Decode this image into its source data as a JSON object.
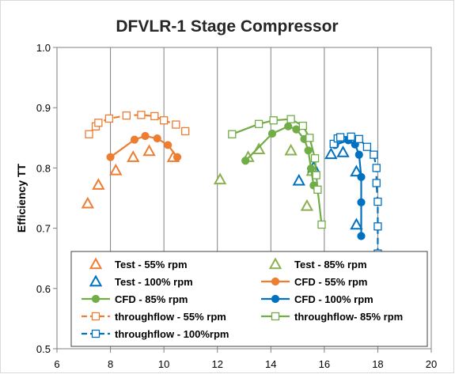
{
  "chart_data": {
    "type": "scatter",
    "title": "DFVLR-1 Stage Compressor",
    "xlabel": "",
    "ylabel": "Efficiency TT",
    "xlim": [
      6,
      20
    ],
    "ylim": [
      0.5,
      1.0
    ],
    "xticks": [
      "6",
      "8",
      "10",
      "12",
      "14",
      "16",
      "18",
      "20"
    ],
    "yticks": [
      "0.5",
      "0.6",
      "0.7",
      "0.8",
      "0.9",
      "1.0"
    ],
    "grid": "vertical major gridlines",
    "legend_position": "lower center, inside plot, two columns",
    "series": [
      {
        "name": "Test - 55% rpm",
        "color": "#ED7D31",
        "marker": "triangle-open",
        "line": "none",
        "points": [
          [
            7.15,
            0.741
          ],
          [
            7.55,
            0.772
          ],
          [
            8.2,
            0.796
          ],
          [
            8.85,
            0.818
          ],
          [
            9.45,
            0.828
          ],
          [
            10.35,
            0.818
          ]
        ]
      },
      {
        "name": "Test - 85% rpm",
        "color": "#8CAF50",
        "marker": "triangle-open",
        "line": "none",
        "points": [
          [
            12.1,
            0.781
          ],
          [
            13.15,
            0.818
          ],
          [
            13.55,
            0.831
          ],
          [
            14.75,
            0.829
          ],
          [
            15.35,
            0.737
          ],
          [
            15.55,
            0.795
          ]
        ]
      },
      {
        "name": "Test - 100% rpm",
        "color": "#0070C0",
        "marker": "triangle-open",
        "line": "none",
        "points": [
          [
            15.05,
            0.779
          ],
          [
            15.6,
            0.801
          ],
          [
            16.25,
            0.823
          ],
          [
            16.7,
            0.826
          ],
          [
            17.2,
            0.794
          ],
          [
            17.2,
            0.706
          ]
        ]
      },
      {
        "name": "CFD - 55% rpm",
        "color": "#ED7D31",
        "marker": "circle-filled",
        "line": "solid",
        "points": [
          [
            8.0,
            0.818
          ],
          [
            8.9,
            0.847
          ],
          [
            9.3,
            0.853
          ],
          [
            9.75,
            0.849
          ],
          [
            10.15,
            0.838
          ],
          [
            10.5,
            0.818
          ]
        ]
      },
      {
        "name": "CFD - 85% rpm",
        "color": "#70AD47",
        "marker": "circle-filled",
        "line": "solid",
        "points": [
          [
            13.05,
            0.812
          ],
          [
            14.05,
            0.857
          ],
          [
            14.65,
            0.869
          ],
          [
            14.95,
            0.864
          ],
          [
            15.25,
            0.848
          ],
          [
            15.4,
            0.829
          ],
          [
            15.5,
            0.799
          ],
          [
            15.6,
            0.771
          ]
        ]
      },
      {
        "name": "CFD - 100% rpm",
        "color": "#0070C0",
        "marker": "circle-filled",
        "line": "solid",
        "points": [
          [
            16.4,
            0.838
          ],
          [
            16.9,
            0.846
          ],
          [
            17.15,
            0.839
          ],
          [
            17.3,
            0.822
          ],
          [
            17.38,
            0.785
          ],
          [
            17.38,
            0.743
          ],
          [
            17.38,
            0.687
          ]
        ]
      },
      {
        "name": "throughflow - 55% rpm",
        "color": "#ED7D31",
        "marker": "square-open",
        "line": "dashed",
        "points": [
          [
            7.2,
            0.856
          ],
          [
            7.45,
            0.869
          ],
          [
            7.55,
            0.875
          ],
          [
            7.95,
            0.882
          ],
          [
            8.6,
            0.887
          ],
          [
            9.15,
            0.888
          ],
          [
            9.65,
            0.886
          ],
          [
            10.0,
            0.879
          ],
          [
            10.45,
            0.872
          ],
          [
            10.8,
            0.861
          ]
        ]
      },
      {
        "name": "throughflow- 85% rpm",
        "color": "#70AD47",
        "marker": "square-open",
        "line": "solid",
        "points": [
          [
            12.55,
            0.856
          ],
          [
            13.55,
            0.873
          ],
          [
            14.1,
            0.879
          ],
          [
            14.75,
            0.881
          ],
          [
            15.2,
            0.87
          ],
          [
            15.45,
            0.85
          ],
          [
            15.65,
            0.816
          ],
          [
            15.7,
            0.788
          ],
          [
            15.75,
            0.764
          ],
          [
            15.9,
            0.706
          ]
        ]
      },
      {
        "name": "throughflow - 100%rpm",
        "color": "#0070C0",
        "marker": "square-open",
        "line": "dashed",
        "points": [
          [
            16.35,
            0.84
          ],
          [
            16.5,
            0.849
          ],
          [
            16.6,
            0.851
          ],
          [
            17.0,
            0.852
          ],
          [
            17.3,
            0.848
          ],
          [
            17.6,
            0.835
          ],
          [
            17.85,
            0.822
          ],
          [
            17.95,
            0.8
          ],
          [
            17.95,
            0.775
          ],
          [
            18.0,
            0.744
          ],
          [
            18.0,
            0.703
          ],
          [
            18.0,
            0.658
          ]
        ]
      }
    ]
  }
}
